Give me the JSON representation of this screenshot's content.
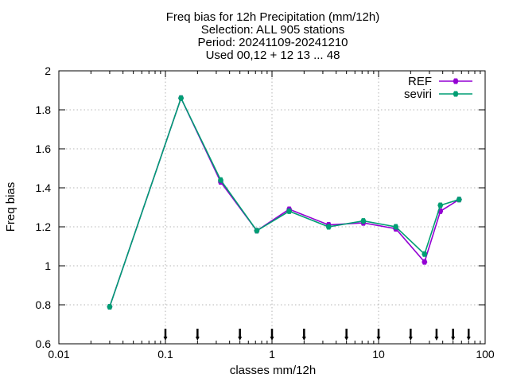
{
  "chart_data": {
    "type": "line",
    "title_lines": [
      "Freq bias  for 12h Precipitation (mm/12h)",
      "Selection: ALL    905 stations",
      "Period: 20241109-20241210",
      "Used 00,12 + 12 13 ... 48"
    ],
    "xlabel": "classes mm/12h",
    "ylabel": "Freq bias",
    "x_scale": "log",
    "xlim": [
      0.01,
      100
    ],
    "ylim": [
      0.6,
      2.0
    ],
    "x_ticks": [
      0.01,
      0.1,
      1,
      10,
      100
    ],
    "x_tick_labels": [
      "0.01",
      "0.1",
      "1",
      "10",
      "100"
    ],
    "y_ticks": [
      0.6,
      0.8,
      1.0,
      1.2,
      1.4,
      1.6,
      1.8,
      2.0
    ],
    "y_tick_labels": [
      "0.6",
      "0.8",
      "1",
      "1.2",
      "1.4",
      "1.6",
      "1.8",
      "2"
    ],
    "grid": true,
    "legend_position": "top-right",
    "x": [
      0.03,
      0.14,
      0.33,
      0.72,
      1.45,
      3.4,
      7.2,
      14.5,
      27,
      38,
      57
    ],
    "series": [
      {
        "name": "REF",
        "color": "#9400d3",
        "values": [
          0.79,
          1.86,
          1.43,
          1.18,
          1.29,
          1.21,
          1.22,
          1.19,
          1.02,
          1.28,
          1.34
        ]
      },
      {
        "name": "seviri",
        "color": "#009e73",
        "values": [
          0.79,
          1.86,
          1.44,
          1.18,
          1.28,
          1.2,
          1.23,
          1.2,
          1.06,
          1.31,
          1.34
        ]
      }
    ],
    "threshold_markers": [
      0.1,
      0.2,
      0.5,
      1,
      2,
      5,
      10,
      20,
      35,
      50,
      70
    ]
  }
}
